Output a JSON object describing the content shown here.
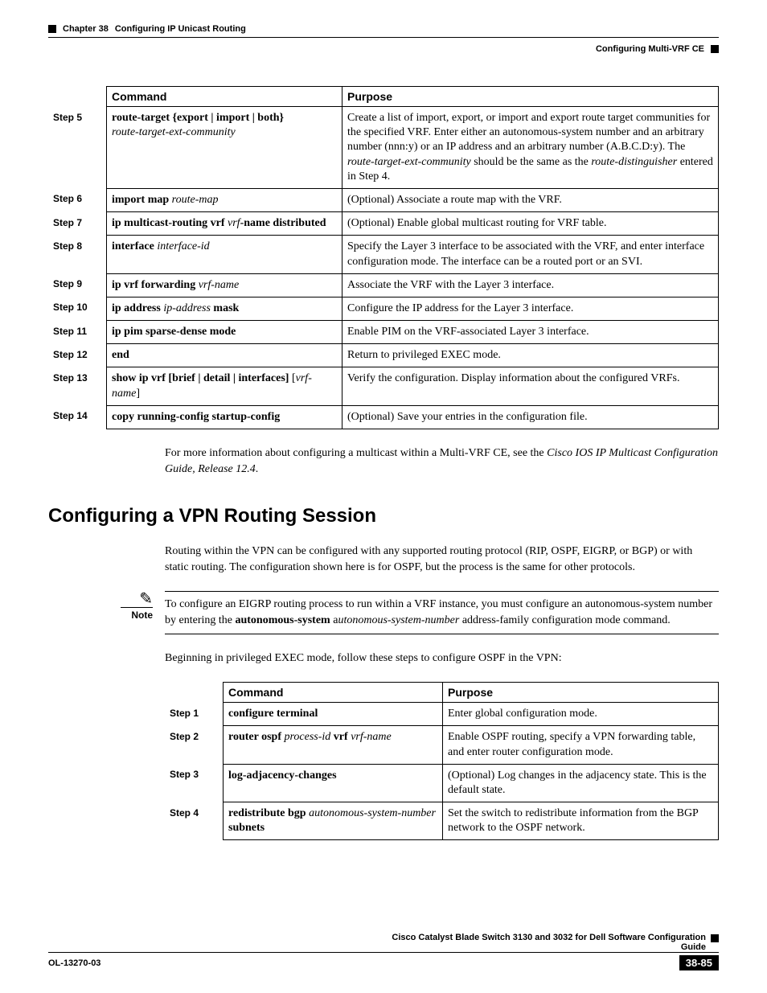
{
  "header": {
    "chapter": "Chapter 38",
    "chapter_title": "Configuring IP Unicast Routing",
    "section": "Configuring Multi-VRF CE"
  },
  "table1": {
    "headers": {
      "command": "Command",
      "purpose": "Purpose"
    },
    "rows": [
      {
        "step": "Step 5",
        "cmd_bold": "route-target {export | import | both}",
        "cmd_ital": "route-target-ext-community",
        "purpose_parts": [
          {
            "t": "Create a list of import, export, or import and export route target communities for the specified VRF. Enter either an autonomous-system number and an arbitrary number (nnn:y) or an IP address and an arbitrary number (A.B.C.D:y). The "
          },
          {
            "t": "route-target-ext-community",
            "i": true
          },
          {
            "t": " should be the same as the "
          },
          {
            "t": "route-distinguisher",
            "i": true
          },
          {
            "t": " entered in Step 4."
          }
        ]
      },
      {
        "step": "Step 6",
        "cmd_parts": [
          {
            "t": "import map ",
            "b": true
          },
          {
            "t": "route-map",
            "i": true
          }
        ],
        "purpose": "(Optional) Associate a route map with the VRF."
      },
      {
        "step": "Step 7",
        "cmd_parts": [
          {
            "t": "ip multicast-routing vrf ",
            "b": true
          },
          {
            "t": "vrf",
            "i": true
          },
          {
            "t": "-name distributed",
            "b": true
          }
        ],
        "purpose": "(Optional) Enable global multicast routing for VRF table."
      },
      {
        "step": "Step 8",
        "cmd_parts": [
          {
            "t": "interface ",
            "b": true
          },
          {
            "t": "interface-id",
            "i": true
          }
        ],
        "purpose": "Specify the Layer 3 interface to be associated with the VRF, and enter interface configuration mode. The interface can be a routed port or an SVI."
      },
      {
        "step": "Step 9",
        "cmd_parts": [
          {
            "t": "ip vrf forwarding ",
            "b": true
          },
          {
            "t": "vrf-name",
            "i": true
          }
        ],
        "purpose": "Associate the VRF with the Layer 3 interface."
      },
      {
        "step": "Step 10",
        "cmd_parts": [
          {
            "t": "ip address ",
            "b": true
          },
          {
            "t": "ip-address ",
            "i": true
          },
          {
            "t": "mask",
            "b": true
          }
        ],
        "purpose": "Configure the IP address for the Layer 3 interface."
      },
      {
        "step": "Step 11",
        "cmd_parts": [
          {
            "t": "ip pim sparse-dense mode",
            "b": true
          }
        ],
        "purpose": "Enable PIM on the VRF-associated Layer 3 interface."
      },
      {
        "step": "Step 12",
        "cmd_parts": [
          {
            "t": "end",
            "b": true
          }
        ],
        "purpose": "Return to privileged EXEC mode."
      },
      {
        "step": "Step 13",
        "cmd_parts": [
          {
            "t": "show ip vrf ",
            "b": true
          },
          {
            "t": "[",
            "b": true
          },
          {
            "t": "brief ",
            "b": true
          },
          {
            "t": "| ",
            "b": true
          },
          {
            "t": "detail ",
            "b": true
          },
          {
            "t": "| ",
            "b": true
          },
          {
            "t": "interfaces",
            "b": true
          },
          {
            "t": "] ",
            "b": true
          },
          {
            "t": "[",
            "n": true
          },
          {
            "t": "vrf-name",
            "i": true
          },
          {
            "t": "]",
            "n": true
          }
        ],
        "purpose": "Verify the configuration. Display information about the configured VRFs."
      },
      {
        "step": "Step 14",
        "cmd_parts": [
          {
            "t": "copy running-config startup-config",
            "b": true
          }
        ],
        "purpose": "(Optional) Save your entries in the configuration file."
      }
    ]
  },
  "para1_parts": [
    {
      "t": "For more information about configuring a multicast within a Multi-VRF CE, see the "
    },
    {
      "t": "Cisco IOS IP Multicast Configuration Guide, Release 12.4",
      "i": true
    },
    {
      "t": "."
    }
  ],
  "heading2": "Configuring a VPN Routing Session",
  "para2": "Routing within the VPN can be configured with any supported routing protocol (RIP, OSPF, EIGRP, or BGP) or with static routing. The configuration shown here is for OSPF, but the process is the same for other protocols.",
  "note": {
    "label": "Note",
    "parts": [
      {
        "t": "To configure an EIGRP routing process to run within a VRF instance, you must configure an autonomous-system number by entering the "
      },
      {
        "t": "autonomous-system ",
        "b": true
      },
      {
        "t": "a"
      },
      {
        "t": "utonomous-system-number",
        "i": true
      },
      {
        "t": " address-family configuration mode command."
      }
    ]
  },
  "para3": "Beginning in privileged EXEC mode, follow these steps to configure OSPF in the VPN:",
  "table2": {
    "headers": {
      "command": "Command",
      "purpose": "Purpose"
    },
    "rows": [
      {
        "step": "Step 1",
        "cmd_parts": [
          {
            "t": "configure terminal",
            "b": true
          }
        ],
        "purpose": "Enter global configuration mode."
      },
      {
        "step": "Step 2",
        "cmd_parts": [
          {
            "t": "router ospf ",
            "b": true
          },
          {
            "t": "process-id ",
            "i": true
          },
          {
            "t": "vrf ",
            "b": true
          },
          {
            "t": "vrf-name",
            "i": true
          }
        ],
        "purpose": "Enable OSPF routing, specify a VPN forwarding table, and enter router configuration mode."
      },
      {
        "step": "Step 3",
        "cmd_parts": [
          {
            "t": "log-adjacency-changes",
            "b": true
          }
        ],
        "purpose": "(Optional) Log changes in the adjacency state. This is the default state."
      },
      {
        "step": "Step 4",
        "cmd_parts": [
          {
            "t": "redistribute bgp ",
            "b": true
          },
          {
            "t": "autonomous-system-number ",
            "i": true
          },
          {
            "t": "subnets",
            "b": true
          }
        ],
        "purpose": "Set the switch to redistribute information from the BGP network to the OSPF network."
      }
    ]
  },
  "footer": {
    "title": "Cisco Catalyst Blade Switch 3130 and 3032 for Dell Software Configuration Guide",
    "doc": "OL-13270-03",
    "page": "38-85"
  }
}
